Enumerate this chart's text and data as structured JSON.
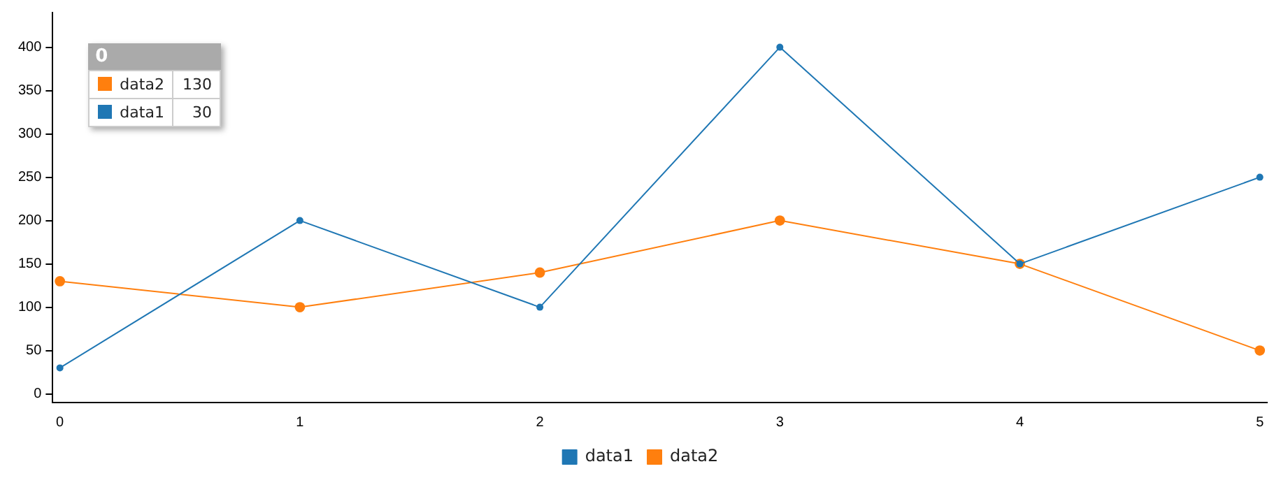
{
  "chart_data": {
    "type": "line",
    "x": [
      0,
      1,
      2,
      3,
      4,
      5
    ],
    "series": [
      {
        "name": "data1",
        "color": "#1f77b4",
        "values": [
          30,
          200,
          100,
          400,
          150,
          250
        ]
      },
      {
        "name": "data2",
        "color": "#ff7f0e",
        "values": [
          130,
          100,
          140,
          200,
          150,
          50
        ]
      }
    ],
    "annotations": [
      "0",
      "data2",
      "130",
      "data1",
      "30"
    ],
    "xlim": [
      -0.03,
      5.03
    ],
    "xticks": [
      0,
      1,
      2,
      3,
      4,
      5
    ],
    "ylim": [
      -10,
      440
    ],
    "yticks": [
      0,
      50,
      100,
      150,
      200,
      250,
      300,
      350,
      400
    ],
    "grid": false,
    "legend": "bottom",
    "marker": "circle",
    "line_style": "solid"
  }
}
